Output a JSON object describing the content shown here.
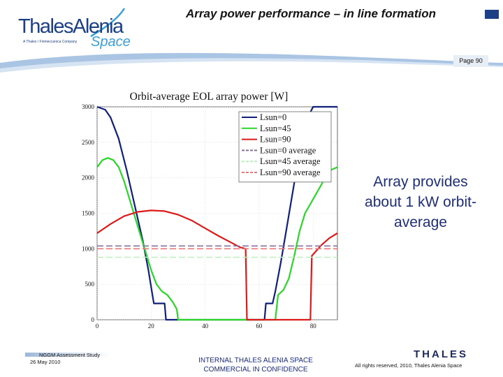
{
  "header": {
    "logo_main": "ThalesAlenia",
    "logo_tagline": "A Thales / Finmeccanica Company",
    "logo_space": "Space",
    "title": "Array power performance – in line formation",
    "page_label": "Page 90"
  },
  "side_note": "Array provides about 1 kW orbit-average",
  "footer": {
    "study": "NGGM Assessment Study",
    "date": "26 May 2010",
    "confidentiality_line1": "INTERNAL THALES ALENIA SPACE",
    "confidentiality_line2": "COMMERCIAL IN CONFIDENCE",
    "brand": "THALES",
    "rights": "All rights reserved, 2010, Thales Alenia Space"
  },
  "colors": {
    "lsun0": "#10207a",
    "lsun45": "#2bd62b",
    "lsun90": "#dd1a1a",
    "lsun0_avg": "#8a6fa0",
    "lsun45_avg": "#b9f0b9",
    "lsun90_avg": "#e87878",
    "brand_blue": "#1d3f86",
    "accent_blue": "#1f2e78"
  },
  "chart_data": {
    "type": "line",
    "title": "Orbit-average EOL array power [W]",
    "xlabel": "",
    "ylabel": "",
    "xlim": [
      0,
      89
    ],
    "ylim": [
      0,
      3000
    ],
    "x_ticks": [
      "0",
      "20",
      "40",
      "60",
      "80"
    ],
    "y_ticks": [
      "0",
      "500",
      "1000",
      "1500",
      "2000",
      "2500",
      "3000"
    ],
    "grid": true,
    "legend_position": "top-right",
    "series": [
      {
        "name": "Lsun=0",
        "style": "solid",
        "color_key": "lsun0",
        "points": [
          [
            0,
            3000
          ],
          [
            3,
            2960
          ],
          [
            5,
            2850
          ],
          [
            8,
            2550
          ],
          [
            11,
            2100
          ],
          [
            14,
            1600
          ],
          [
            17,
            1100
          ],
          [
            19,
            700
          ],
          [
            20.5,
            350
          ],
          [
            21,
            230
          ],
          [
            25,
            230
          ],
          [
            25.5,
            0
          ],
          [
            62,
            0
          ],
          [
            62.5,
            230
          ],
          [
            65,
            230
          ],
          [
            66,
            400
          ],
          [
            68,
            800
          ],
          [
            70,
            1250
          ],
          [
            72,
            1700
          ],
          [
            74,
            2150
          ],
          [
            76,
            2550
          ],
          [
            78,
            2850
          ],
          [
            80,
            3000
          ],
          [
            89,
            3000
          ]
        ]
      },
      {
        "name": "Lsun=45",
        "style": "solid",
        "color_key": "lsun45",
        "points": [
          [
            0,
            2150
          ],
          [
            2,
            2250
          ],
          [
            4,
            2280
          ],
          [
            6,
            2250
          ],
          [
            8,
            2150
          ],
          [
            10,
            1950
          ],
          [
            12,
            1700
          ],
          [
            14,
            1450
          ],
          [
            16,
            1200
          ],
          [
            18,
            950
          ],
          [
            20,
            700
          ],
          [
            22,
            500
          ],
          [
            24,
            400
          ],
          [
            26,
            350
          ],
          [
            28,
            250
          ],
          [
            29.5,
            150
          ],
          [
            30,
            0
          ],
          [
            65,
            0
          ],
          [
            66,
            0
          ],
          [
            67,
            350
          ],
          [
            69,
            420
          ],
          [
            71,
            580
          ],
          [
            73,
            900
          ],
          [
            75,
            1250
          ],
          [
            77,
            1500
          ],
          [
            80,
            1700
          ],
          [
            83,
            1900
          ],
          [
            86,
            2100
          ],
          [
            89,
            2150
          ]
        ]
      },
      {
        "name": "Lsun=90",
        "style": "solid",
        "color_key": "lsun90",
        "points": [
          [
            0,
            1220
          ],
          [
            5,
            1350
          ],
          [
            10,
            1460
          ],
          [
            15,
            1520
          ],
          [
            20,
            1540
          ],
          [
            25,
            1530
          ],
          [
            30,
            1480
          ],
          [
            35,
            1400
          ],
          [
            40,
            1290
          ],
          [
            45,
            1180
          ],
          [
            50,
            1080
          ],
          [
            53,
            1020
          ],
          [
            55,
            1000
          ],
          [
            55.5,
            0
          ],
          [
            79,
            0
          ],
          [
            79.5,
            900
          ],
          [
            83,
            1050
          ],
          [
            86,
            1150
          ],
          [
            89,
            1220
          ]
        ]
      },
      {
        "name": "Lsun=0 average",
        "style": "dashed",
        "color_key": "lsun0_avg",
        "points": [
          [
            0,
            1040
          ],
          [
            89,
            1040
          ]
        ]
      },
      {
        "name": "Lsun=45 average",
        "style": "dashed",
        "color_key": "lsun45_avg",
        "points": [
          [
            0,
            880
          ],
          [
            89,
            880
          ]
        ]
      },
      {
        "name": "Lsun=90 average",
        "style": "dashed",
        "color_key": "lsun90_avg",
        "points": [
          [
            0,
            1000
          ],
          [
            89,
            1000
          ]
        ]
      }
    ]
  }
}
